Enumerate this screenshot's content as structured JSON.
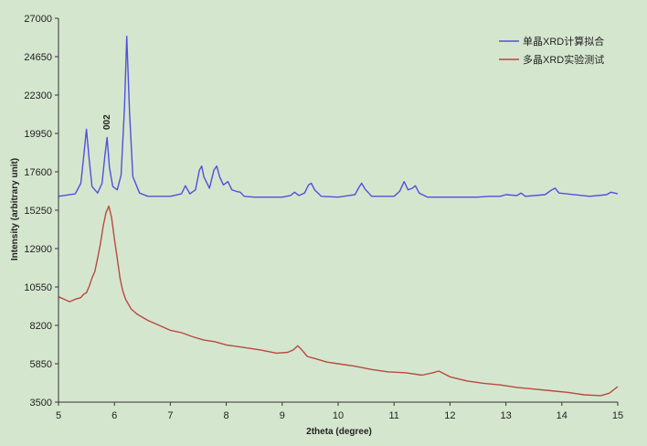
{
  "chart_data": {
    "type": "line",
    "xlabel": "2theta (degree)",
    "ylabel": "Intensity (arbitrary unit)",
    "xlim": [
      5,
      15
    ],
    "ylim": [
      3500,
      27000
    ],
    "xticks": [
      5,
      6,
      7,
      8,
      9,
      10,
      11,
      12,
      13,
      14,
      15
    ],
    "yticks": [
      3500,
      5850,
      8200,
      10550,
      12900,
      15250,
      17600,
      19950,
      22300,
      24650,
      27000
    ],
    "grid": false,
    "legend_position": "top-right",
    "annotations": [
      {
        "text": "002",
        "x": 5.87,
        "y": 19950
      }
    ],
    "series": [
      {
        "name": "单晶XRD计算拟合",
        "color": "#5050dc",
        "x": [
          5.0,
          5.3,
          5.4,
          5.45,
          5.5,
          5.55,
          5.6,
          5.7,
          5.78,
          5.83,
          5.87,
          5.91,
          5.97,
          6.05,
          6.12,
          6.18,
          6.22,
          6.27,
          6.33,
          6.45,
          6.6,
          7.0,
          7.2,
          7.27,
          7.35,
          7.45,
          7.52,
          7.56,
          7.6,
          7.7,
          7.78,
          7.83,
          7.88,
          7.95,
          8.03,
          8.1,
          8.18,
          8.25,
          8.32,
          8.5,
          9.0,
          9.15,
          9.22,
          9.3,
          9.4,
          9.47,
          9.52,
          9.58,
          9.7,
          10.0,
          10.3,
          10.38,
          10.42,
          10.48,
          10.6,
          11.0,
          11.1,
          11.18,
          11.25,
          11.33,
          11.38,
          11.45,
          11.6,
          12.0,
          12.5,
          12.7,
          12.9,
          13.0,
          13.2,
          13.27,
          13.35,
          13.7,
          13.82,
          13.88,
          13.95,
          14.5,
          14.8,
          14.88,
          15.0
        ],
        "values": [
          16100,
          16250,
          16900,
          18500,
          20200,
          18300,
          16700,
          16300,
          16900,
          18600,
          19700,
          17900,
          16700,
          16500,
          17400,
          21500,
          25900,
          21300,
          17300,
          16300,
          16100,
          16100,
          16250,
          16750,
          16250,
          16500,
          17700,
          17950,
          17300,
          16600,
          17700,
          17950,
          17300,
          16800,
          17000,
          16500,
          16400,
          16350,
          16100,
          16050,
          16050,
          16150,
          16350,
          16150,
          16300,
          16800,
          16900,
          16500,
          16100,
          16050,
          16200,
          16700,
          16900,
          16550,
          16100,
          16100,
          16400,
          17000,
          16500,
          16600,
          16750,
          16300,
          16050,
          16050,
          16050,
          16100,
          16100,
          16200,
          16150,
          16300,
          16100,
          16200,
          16500,
          16600,
          16300,
          16100,
          16200,
          16350,
          16250
        ]
      },
      {
        "name": "多晶XRD实验测试",
        "color": "#b84a3e",
        "x": [
          5.0,
          5.1,
          5.2,
          5.3,
          5.4,
          5.45,
          5.5,
          5.55,
          5.6,
          5.65,
          5.7,
          5.75,
          5.8,
          5.85,
          5.9,
          5.95,
          6.0,
          6.05,
          6.1,
          6.15,
          6.2,
          6.3,
          6.4,
          6.5,
          6.6,
          6.8,
          7.0,
          7.2,
          7.4,
          7.6,
          7.8,
          8.0,
          8.3,
          8.6,
          8.9,
          9.1,
          9.2,
          9.28,
          9.35,
          9.45,
          9.6,
          9.8,
          10.0,
          10.3,
          10.6,
          10.9,
          11.2,
          11.5,
          11.7,
          11.8,
          12.0,
          12.3,
          12.6,
          12.9,
          13.2,
          13.5,
          13.8,
          14.1,
          14.4,
          14.7,
          14.85,
          15.0
        ],
        "values": [
          9950,
          9800,
          9650,
          9800,
          9900,
          10100,
          10200,
          10600,
          11100,
          11500,
          12300,
          13200,
          14300,
          15100,
          15500,
          14800,
          13500,
          12300,
          11100,
          10300,
          9800,
          9200,
          8900,
          8700,
          8500,
          8200,
          7900,
          7750,
          7500,
          7300,
          7200,
          7000,
          6850,
          6700,
          6500,
          6550,
          6700,
          6950,
          6700,
          6300,
          6150,
          5950,
          5850,
          5700,
          5500,
          5350,
          5300,
          5150,
          5300,
          5400,
          5050,
          4800,
          4650,
          4550,
          4400,
          4300,
          4200,
          4100,
          3950,
          3900,
          4050,
          4450
        ]
      }
    ]
  }
}
